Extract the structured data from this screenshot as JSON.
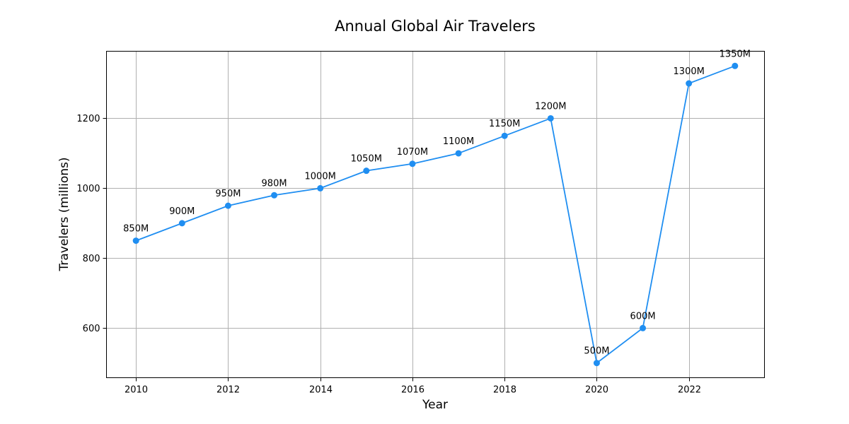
{
  "chart_data": {
    "type": "line",
    "title": "Annual Global Air Travelers",
    "xlabel": "Year",
    "ylabel": "Travelers (millions)",
    "x": [
      2010,
      2011,
      2012,
      2013,
      2014,
      2015,
      2016,
      2017,
      2018,
      2019,
      2020,
      2021,
      2022,
      2023
    ],
    "series": [
      {
        "values": [
          850,
          900,
          950,
          980,
          1000,
          1050,
          1070,
          1100,
          1150,
          1200,
          500,
          600,
          1300,
          1350
        ],
        "data_labels": [
          "850M",
          "900M",
          "950M",
          "980M",
          "1000M",
          "1050M",
          "1070M",
          "1100M",
          "1150M",
          "1200M",
          "500M",
          "600M",
          "1300M",
          "1350M"
        ],
        "color": "#1f8ef1",
        "marker": "circle"
      }
    ],
    "xlim": [
      2009.36,
      2023.64
    ],
    "ylim": [
      458,
      1392
    ],
    "xticks": [
      2010,
      2012,
      2014,
      2016,
      2018,
      2020,
      2022
    ],
    "xtick_labels": [
      "2010",
      "2012",
      "2014",
      "2016",
      "2018",
      "2020",
      "2022"
    ],
    "yticks": [
      600,
      800,
      1000,
      1200
    ],
    "ytick_labels": [
      "600",
      "800",
      "1000",
      "1200"
    ],
    "grid": true,
    "legend": false
  }
}
